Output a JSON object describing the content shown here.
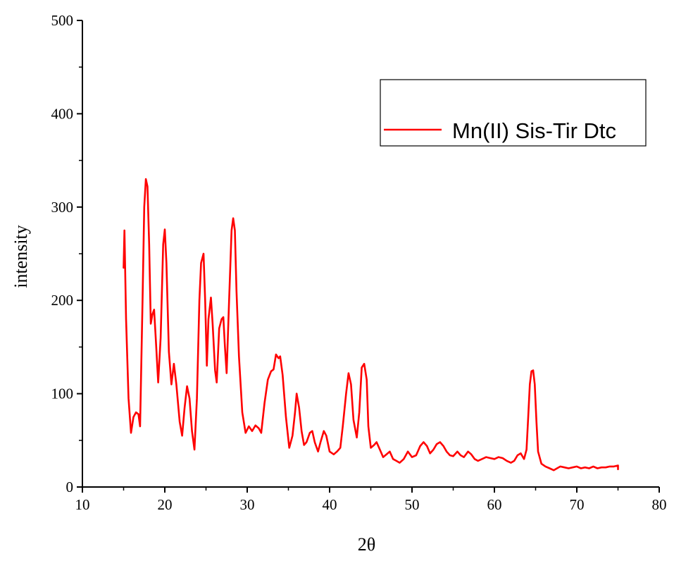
{
  "chart_data": {
    "type": "line",
    "title": "",
    "xlabel": "2θ",
    "ylabel": "intensity",
    "xlim": [
      10,
      80
    ],
    "ylim": [
      0,
      500
    ],
    "x_ticks": [
      10,
      20,
      30,
      40,
      50,
      60,
      70,
      80
    ],
    "y_ticks": [
      0,
      100,
      200,
      300,
      400,
      500
    ],
    "x_tick_labels": [
      "10",
      "20",
      "30",
      "40",
      "50",
      "60",
      "70",
      "80"
    ],
    "y_tick_labels": [
      "0",
      "100",
      "200",
      "300",
      "400",
      "500"
    ],
    "grid": false,
    "legend": {
      "position": "top-right",
      "entries": [
        "Mn(II) Sis-Tir Dtc"
      ]
    },
    "series": [
      {
        "name": "Mn(II) Sis-Tir Dtc",
        "color": "#ff0000",
        "points": [
          [
            15.0,
            235
          ],
          [
            15.1,
            275
          ],
          [
            15.3,
            180
          ],
          [
            15.6,
            95
          ],
          [
            15.9,
            58
          ],
          [
            16.2,
            75
          ],
          [
            16.5,
            80
          ],
          [
            16.8,
            78
          ],
          [
            17.0,
            65
          ],
          [
            17.3,
            200
          ],
          [
            17.5,
            300
          ],
          [
            17.7,
            330
          ],
          [
            17.9,
            322
          ],
          [
            18.1,
            260
          ],
          [
            18.3,
            175
          ],
          [
            18.5,
            185
          ],
          [
            18.7,
            190
          ],
          [
            18.9,
            160
          ],
          [
            19.2,
            112
          ],
          [
            19.5,
            160
          ],
          [
            19.8,
            260
          ],
          [
            20.0,
            276
          ],
          [
            20.2,
            240
          ],
          [
            20.5,
            145
          ],
          [
            20.8,
            110
          ],
          [
            21.1,
            132
          ],
          [
            21.4,
            110
          ],
          [
            21.8,
            70
          ],
          [
            22.1,
            55
          ],
          [
            22.4,
            85
          ],
          [
            22.7,
            108
          ],
          [
            23.0,
            95
          ],
          [
            23.3,
            60
          ],
          [
            23.6,
            40
          ],
          [
            23.9,
            95
          ],
          [
            24.2,
            200
          ],
          [
            24.4,
            240
          ],
          [
            24.7,
            250
          ],
          [
            24.9,
            200
          ],
          [
            25.1,
            130
          ],
          [
            25.3,
            180
          ],
          [
            25.6,
            203
          ],
          [
            25.8,
            175
          ],
          [
            26.1,
            125
          ],
          [
            26.3,
            112
          ],
          [
            26.6,
            170
          ],
          [
            26.9,
            180
          ],
          [
            27.1,
            182
          ],
          [
            27.3,
            150
          ],
          [
            27.5,
            122
          ],
          [
            27.8,
            200
          ],
          [
            28.1,
            275
          ],
          [
            28.3,
            288
          ],
          [
            28.5,
            275
          ],
          [
            28.7,
            210
          ],
          [
            29.0,
            140
          ],
          [
            29.4,
            80
          ],
          [
            29.8,
            58
          ],
          [
            30.2,
            65
          ],
          [
            30.6,
            60
          ],
          [
            31.0,
            66
          ],
          [
            31.4,
            63
          ],
          [
            31.7,
            58
          ],
          [
            32.1,
            90
          ],
          [
            32.5,
            115
          ],
          [
            32.9,
            124
          ],
          [
            33.2,
            126
          ],
          [
            33.5,
            142
          ],
          [
            33.8,
            138
          ],
          [
            34.0,
            140
          ],
          [
            34.3,
            120
          ],
          [
            34.7,
            75
          ],
          [
            35.1,
            42
          ],
          [
            35.5,
            55
          ],
          [
            35.8,
            80
          ],
          [
            36.0,
            100
          ],
          [
            36.3,
            85
          ],
          [
            36.6,
            60
          ],
          [
            36.9,
            45
          ],
          [
            37.2,
            48
          ],
          [
            37.6,
            58
          ],
          [
            37.9,
            60
          ],
          [
            38.2,
            48
          ],
          [
            38.6,
            38
          ],
          [
            38.9,
            48
          ],
          [
            39.3,
            60
          ],
          [
            39.6,
            55
          ],
          [
            40.0,
            38
          ],
          [
            40.5,
            35
          ],
          [
            40.9,
            38
          ],
          [
            41.3,
            42
          ],
          [
            41.6,
            65
          ],
          [
            42.0,
            100
          ],
          [
            42.3,
            122
          ],
          [
            42.6,
            110
          ],
          [
            42.9,
            72
          ],
          [
            43.3,
            53
          ],
          [
            43.6,
            80
          ],
          [
            43.9,
            128
          ],
          [
            44.2,
            132
          ],
          [
            44.5,
            115
          ],
          [
            44.7,
            65
          ],
          [
            45.0,
            42
          ],
          [
            45.4,
            45
          ],
          [
            45.7,
            48
          ],
          [
            46.1,
            40
          ],
          [
            46.5,
            32
          ],
          [
            46.9,
            35
          ],
          [
            47.3,
            38
          ],
          [
            47.7,
            30
          ],
          [
            48.1,
            28
          ],
          [
            48.5,
            26
          ],
          [
            49.0,
            30
          ],
          [
            49.5,
            38
          ],
          [
            50.0,
            32
          ],
          [
            50.5,
            34
          ],
          [
            51.0,
            44
          ],
          [
            51.4,
            48
          ],
          [
            51.8,
            44
          ],
          [
            52.2,
            36
          ],
          [
            52.6,
            40
          ],
          [
            53.0,
            46
          ],
          [
            53.4,
            48
          ],
          [
            53.8,
            44
          ],
          [
            54.2,
            38
          ],
          [
            54.6,
            34
          ],
          [
            55.0,
            33
          ],
          [
            55.5,
            38
          ],
          [
            55.9,
            34
          ],
          [
            56.3,
            32
          ],
          [
            56.8,
            38
          ],
          [
            57.2,
            35
          ],
          [
            57.6,
            30
          ],
          [
            58.0,
            28
          ],
          [
            58.5,
            30
          ],
          [
            59.0,
            32
          ],
          [
            59.5,
            31
          ],
          [
            60.0,
            30
          ],
          [
            60.5,
            32
          ],
          [
            61.0,
            31
          ],
          [
            61.5,
            28
          ],
          [
            62.0,
            26
          ],
          [
            62.4,
            28
          ],
          [
            62.8,
            34
          ],
          [
            63.2,
            36
          ],
          [
            63.6,
            30
          ],
          [
            63.9,
            40
          ],
          [
            64.1,
            75
          ],
          [
            64.3,
            110
          ],
          [
            64.5,
            124
          ],
          [
            64.7,
            125
          ],
          [
            64.9,
            110
          ],
          [
            65.1,
            70
          ],
          [
            65.3,
            38
          ],
          [
            65.7,
            25
          ],
          [
            66.2,
            22
          ],
          [
            66.7,
            20
          ],
          [
            67.2,
            18
          ],
          [
            67.6,
            20
          ],
          [
            68.0,
            22
          ],
          [
            68.5,
            21
          ],
          [
            69.0,
            20
          ],
          [
            69.5,
            21
          ],
          [
            70.0,
            22
          ],
          [
            70.5,
            20
          ],
          [
            71.0,
            21
          ],
          [
            71.5,
            20
          ],
          [
            72.0,
            22
          ],
          [
            72.5,
            20
          ],
          [
            73.0,
            21
          ],
          [
            73.5,
            21
          ],
          [
            74.0,
            22
          ],
          [
            74.5,
            22
          ],
          [
            75.0,
            23
          ],
          [
            75.0,
            19
          ]
        ]
      }
    ]
  }
}
